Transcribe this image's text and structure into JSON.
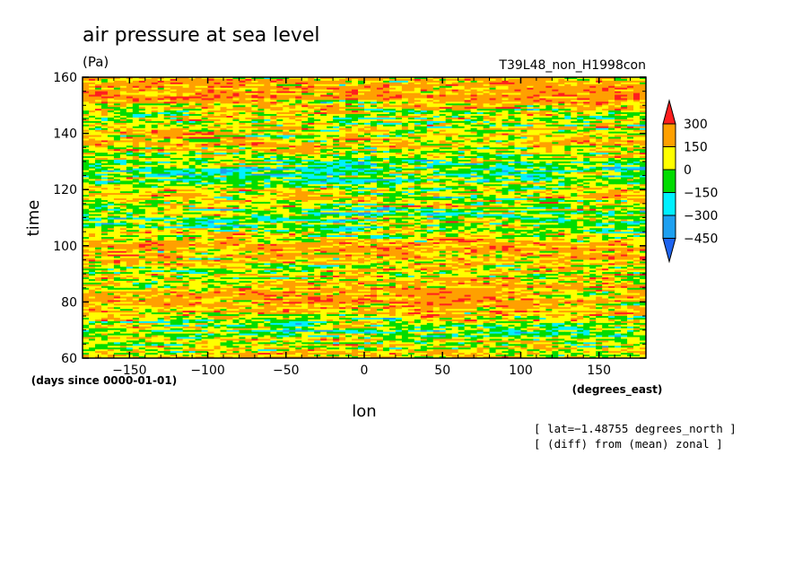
{
  "chart_data": {
    "type": "heatmap",
    "title": "air pressure at sea level",
    "units": "(Pa)",
    "run_label": "T39L48_non_H1998con",
    "xlabel": "lon",
    "ylabel": "time",
    "x_units": "(degrees_east)",
    "y_units": "(days since 0000-01-01)",
    "xlim": [
      -180,
      180
    ],
    "ylim": [
      60,
      160
    ],
    "x_ticks": [
      -150,
      -100,
      -50,
      0,
      50,
      100,
      150
    ],
    "y_ticks": [
      60,
      80,
      100,
      120,
      140,
      160
    ],
    "colorbar": {
      "labels": [
        "300",
        "150",
        "0",
        "−150",
        "−300",
        "−450"
      ],
      "levels": [
        -450,
        -300,
        -150,
        0,
        150,
        300
      ],
      "colors": [
        "#1e64f0",
        "#1ea0f0",
        "#00f0ff",
        "#00dc00",
        "#ffff00",
        "#ffa000",
        "#ff1e1e"
      ]
    },
    "annotations": [
      "[ lat=−1.48755 degrees_north ]",
      "[ (diff) from (mean) zonal ]"
    ]
  }
}
